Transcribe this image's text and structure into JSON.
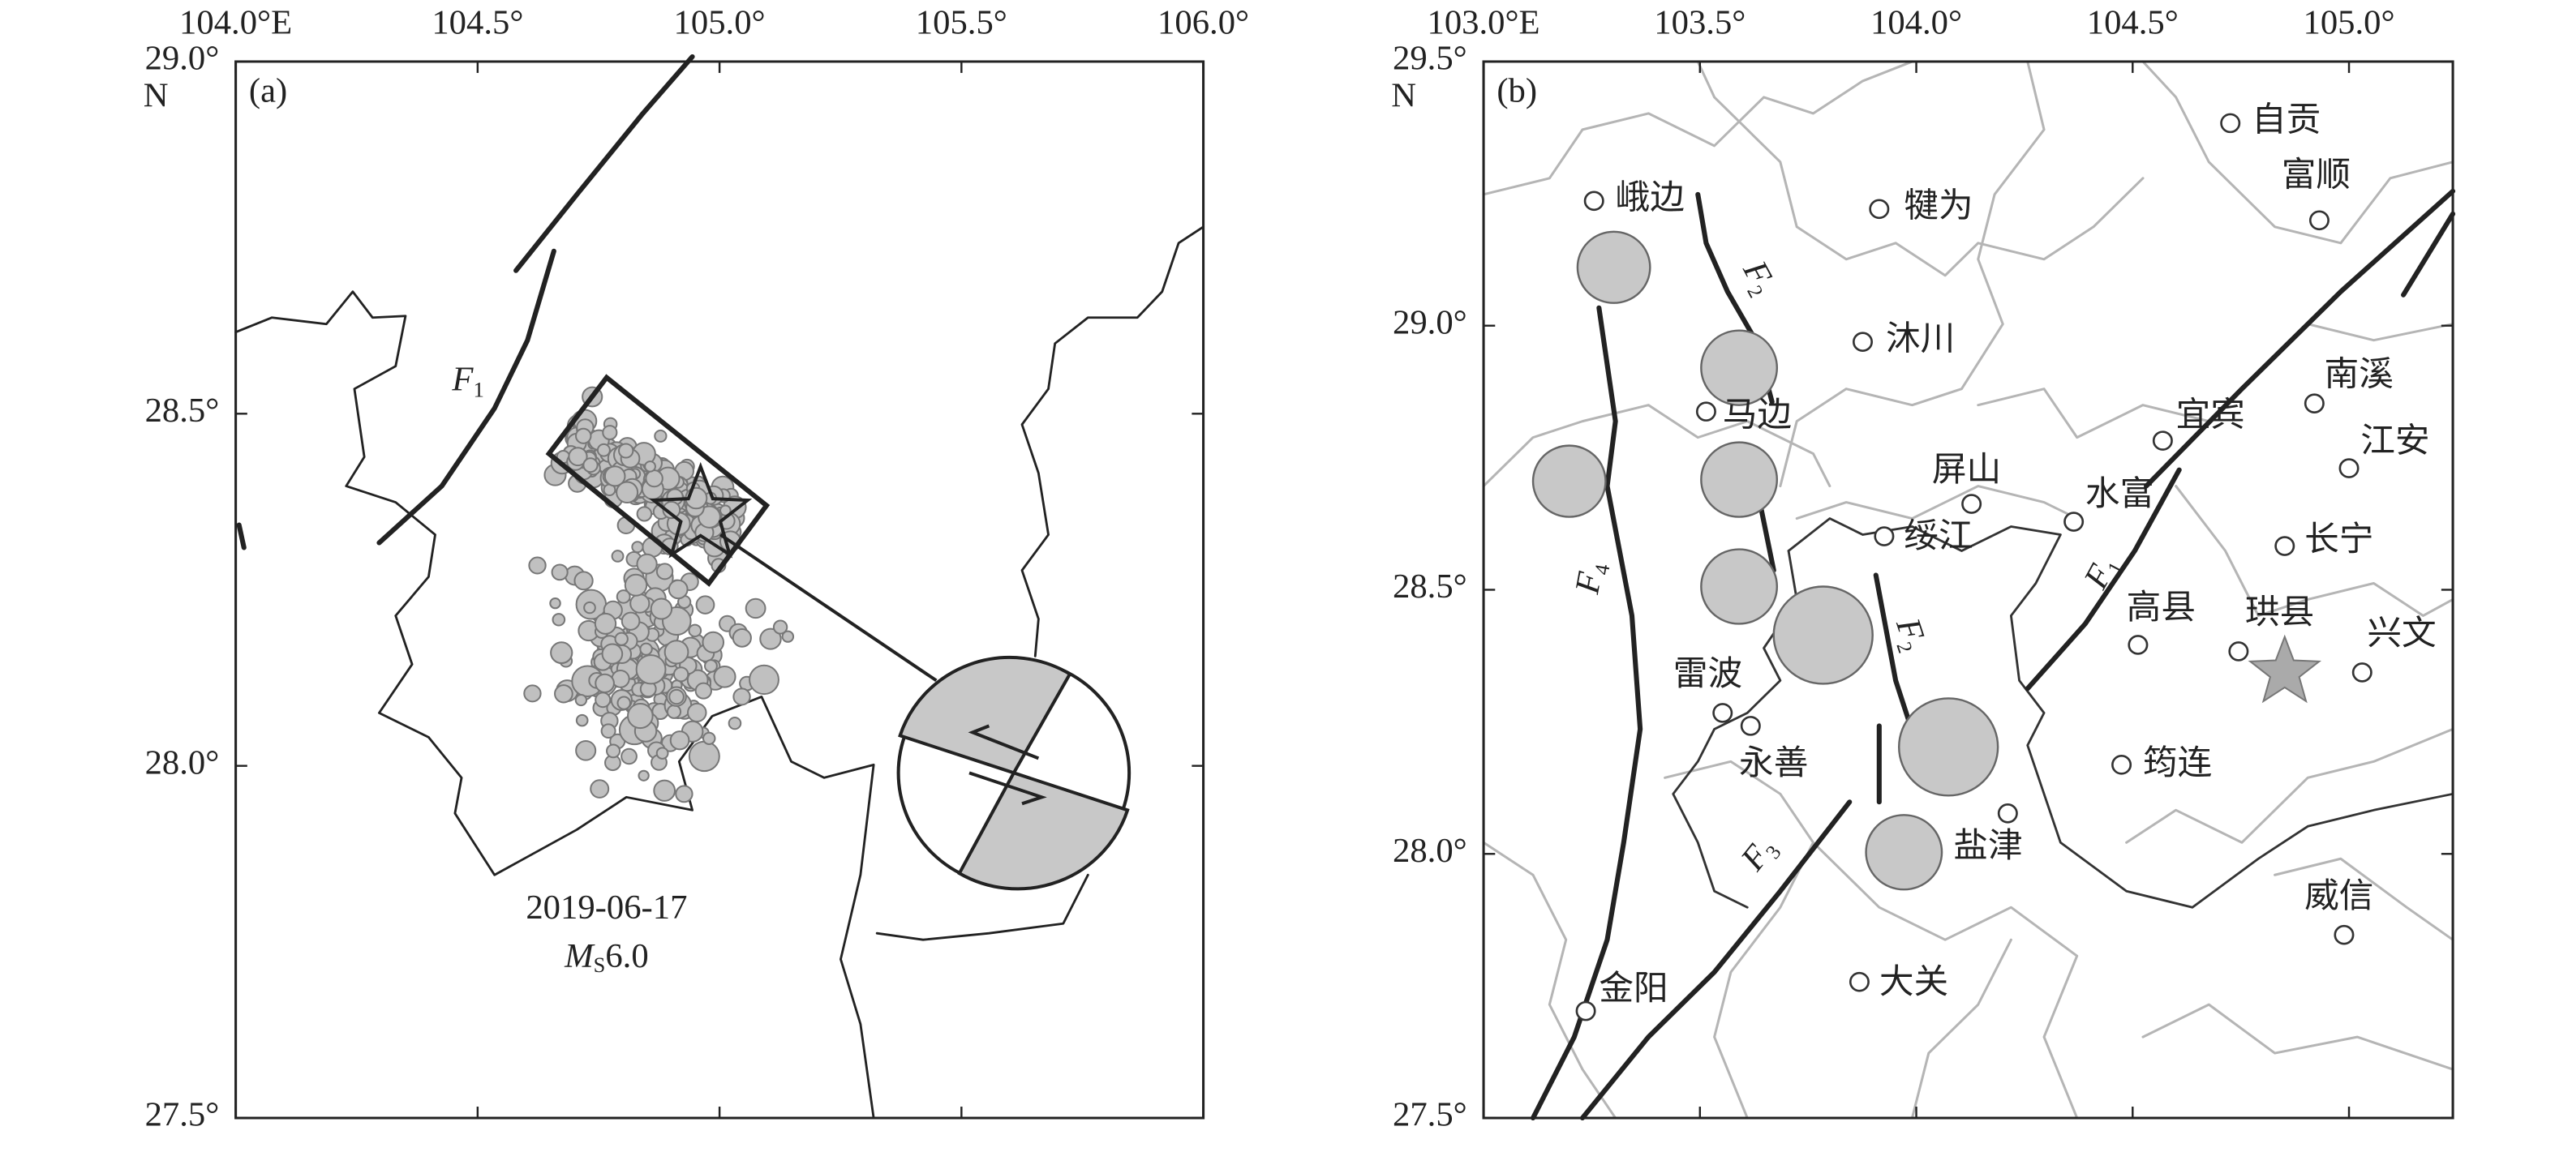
{
  "panels": [
    {
      "label": "(a)",
      "xlim": [
        104,
        106
      ],
      "ylim": [
        27.5,
        29
      ],
      "xticks": [
        {
          "value": 104,
          "label": "104.0°E"
        },
        {
          "value": 104.5,
          "label": "104.5°"
        },
        {
          "value": 105,
          "label": "105.0°"
        },
        {
          "value": 105.5,
          "label": "105.5°"
        },
        {
          "value": 106,
          "label": "106.0°"
        }
      ],
      "yticks": [
        {
          "value": 29,
          "label": "29.0°"
        },
        {
          "value": 28.5,
          "label": "28.5°"
        },
        {
          "value": 28,
          "label": "28.0°"
        },
        {
          "value": 27.5,
          "label": "27.5°"
        }
      ],
      "north": "N",
      "faults": [
        {
          "letter": "F",
          "sub": "1"
        }
      ],
      "date": "2019-06-17",
      "magnitude": {
        "letter": "M",
        "sub": "S",
        "value": "6.0"
      }
    },
    {
      "label": "(b)",
      "xlim": [
        103,
        105.24
      ],
      "ylim": [
        27.5,
        29.5
      ],
      "xticks": [
        {
          "value": 103,
          "label": "103.0°E"
        },
        {
          "value": 103.5,
          "label": "103.5°"
        },
        {
          "value": 104,
          "label": "104.0°"
        },
        {
          "value": 104.5,
          "label": "104.5°"
        },
        {
          "value": 105,
          "label": "105.0°"
        }
      ],
      "yticks": [
        {
          "value": 29.5,
          "label": "29.5°"
        },
        {
          "value": 29,
          "label": "29.0°"
        },
        {
          "value": 28.5,
          "label": "28.5°"
        },
        {
          "value": 28,
          "label": "28.0°"
        },
        {
          "value": 27.5,
          "label": "27.5°"
        }
      ],
      "north": "N",
      "faults": [
        {
          "letter": "F",
          "sub": "2"
        },
        {
          "letter": "F",
          "sub": "4"
        },
        {
          "letter": "F",
          "sub": "2"
        },
        {
          "letter": "F",
          "sub": "3"
        },
        {
          "letter": "F",
          "sub": "1"
        }
      ],
      "cities": [
        "自贡",
        "富顺",
        "峨边",
        "犍为",
        "沐川",
        "马边",
        "宜宾",
        "南溪",
        "江安",
        "屏山",
        "水富",
        "绥江",
        "长宁",
        "高县",
        "珙县",
        "兴文",
        "雷波",
        "永善",
        "筠连",
        "盐津",
        "威信",
        "金阳",
        "大关"
      ]
    }
  ]
}
